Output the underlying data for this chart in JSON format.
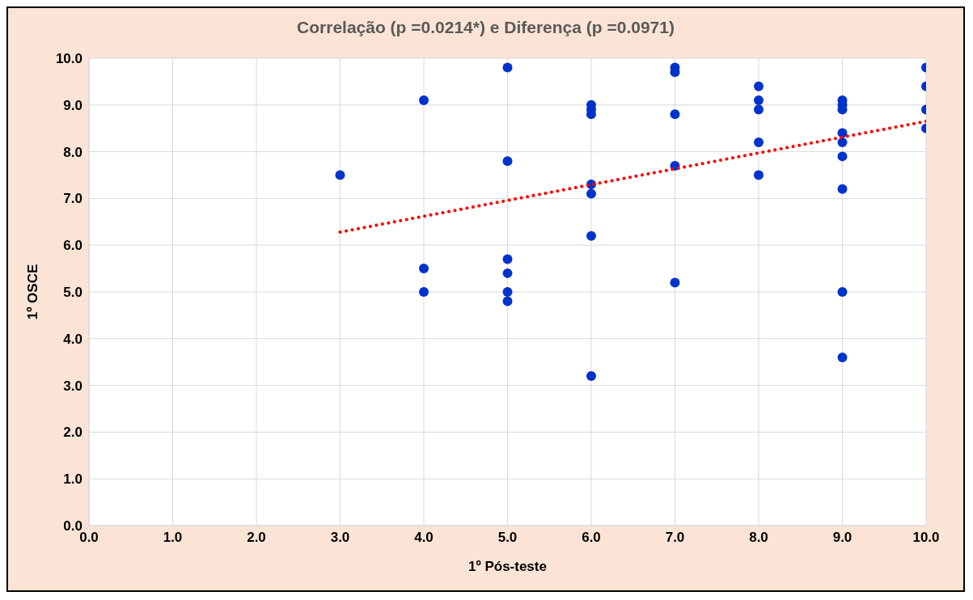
{
  "chart_data": {
    "type": "scatter",
    "title": "Correlação (p =0.0214*) e  Diferença (p =0.0971)",
    "xlabel": "1º Pós-teste",
    "ylabel": "1º OSCE",
    "series": [
      {
        "color": "#0033cc",
        "marker": "circle",
        "x": [
          3,
          4,
          4,
          4,
          5,
          5,
          5,
          5,
          5,
          5,
          6,
          6,
          6,
          6,
          6,
          6,
          6,
          7,
          7,
          7,
          7,
          7,
          8,
          8,
          8,
          8,
          8,
          9,
          9,
          9,
          9,
          9,
          9,
          9,
          9,
          9,
          10,
          10,
          10,
          10
        ],
        "values": [
          7.5,
          9.1,
          5.5,
          5.0,
          9.8,
          7.8,
          5.7,
          5.4,
          5.0,
          4.8,
          9.0,
          8.9,
          8.8,
          7.3,
          7.1,
          6.2,
          3.2,
          9.8,
          9.7,
          8.8,
          7.7,
          5.2,
          9.4,
          9.1,
          8.9,
          8.2,
          7.5,
          9.1,
          9.0,
          8.9,
          8.4,
          8.2,
          7.9,
          7.2,
          5.0,
          3.6,
          9.8,
          9.4,
          8.9,
          8.5
        ]
      },
      {
        "type": "line",
        "color": "#ff0000",
        "line_style": "dotted",
        "x": [
          3,
          10
        ],
        "values": [
          6.28,
          8.65
        ]
      }
    ],
    "xlim": [
      0,
      10
    ],
    "xticks": [
      {
        "value": 0,
        "label": "0.0"
      },
      {
        "value": 1,
        "label": "1.0"
      },
      {
        "value": 2,
        "label": "2.0"
      },
      {
        "value": 3,
        "label": "3.0"
      },
      {
        "value": 4,
        "label": "4.0"
      },
      {
        "value": 5,
        "label": "5.0"
      },
      {
        "value": 6,
        "label": "6.0"
      },
      {
        "value": 7,
        "label": "7.0"
      },
      {
        "value": 8,
        "label": "8.0"
      },
      {
        "value": 9,
        "label": "9.0"
      },
      {
        "value": 10,
        "label": "10.0"
      }
    ],
    "ylim": [
      0,
      10
    ],
    "yticks": [
      {
        "value": 0,
        "label": "0.0"
      },
      {
        "value": 1,
        "label": "1.0"
      },
      {
        "value": 2,
        "label": "2.0"
      },
      {
        "value": 3,
        "label": "3.0"
      },
      {
        "value": 4,
        "label": "4.0"
      },
      {
        "value": 5,
        "label": "5.0"
      },
      {
        "value": 6,
        "label": "6.0"
      },
      {
        "value": 7,
        "label": "7.0"
      },
      {
        "value": 8,
        "label": "8.0"
      },
      {
        "value": 9,
        "label": "9.0"
      },
      {
        "value": 10,
        "label": "10.0"
      }
    ],
    "grid": true
  }
}
